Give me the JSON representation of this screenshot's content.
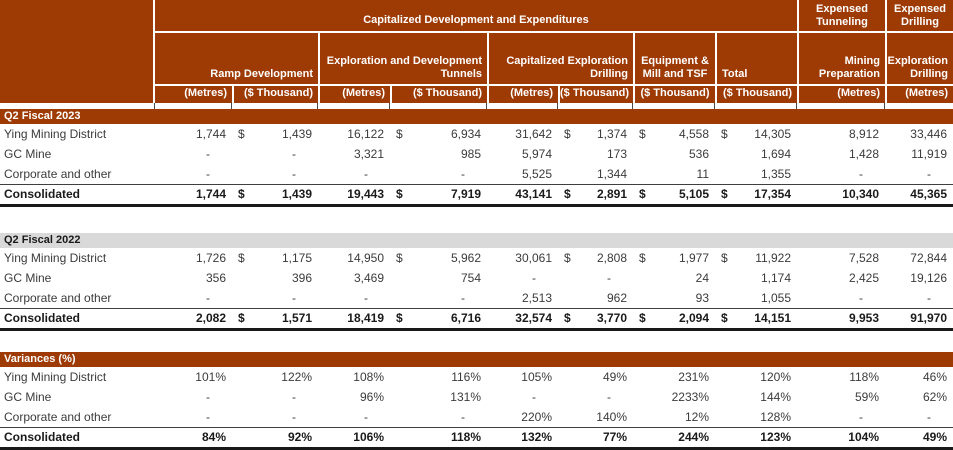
{
  "colors": {
    "accent": "#9E3A04",
    "section_alt_bg": "#D9D9D9",
    "header_text": "#FFFFFF"
  },
  "header": {
    "group": "Capitalized Development and Expenditures",
    "expensed_tunneling": "Expensed Tunneling",
    "expensed_drilling": "Expensed Drilling",
    "columns": [
      "Ramp Development",
      "Exploration and Development Tunnels",
      "Capitalized Exploration Drilling",
      "Equipment & Mill and TSF",
      "Total",
      "Mining Preparation",
      "Exploration Drilling"
    ],
    "units": [
      "(Metres)",
      "($ Thousand)",
      "(Metres)",
      "($ Thousand)",
      "(Metres)",
      "($ Thousand)",
      "($ Thousand)",
      "($ Thousand)",
      "(Metres)",
      "(Metres)"
    ]
  },
  "sections": [
    {
      "title": "Q2 Fiscal 2023",
      "rows": [
        {
          "label": "Ying Mining District",
          "cells": [
            {
              "v": "1,744"
            },
            {
              "s": "$",
              "v": "1,439"
            },
            {
              "v": "16,122"
            },
            {
              "s": "$",
              "v": "6,934"
            },
            {
              "v": "31,642"
            },
            {
              "s": "$",
              "v": "1,374"
            },
            {
              "s": "$",
              "v": "4,558"
            },
            {
              "s": "$",
              "v": "14,305"
            },
            {
              "v": "8,912"
            },
            {
              "v": "33,446"
            }
          ]
        },
        {
          "label": "GC Mine",
          "cells": [
            {
              "v": "-"
            },
            {
              "v": "-"
            },
            {
              "v": "3,321"
            },
            {
              "v": "985"
            },
            {
              "v": "5,974"
            },
            {
              "v": "173"
            },
            {
              "v": "536"
            },
            {
              "v": "1,694"
            },
            {
              "v": "1,428"
            },
            {
              "v": "11,919"
            }
          ]
        },
        {
          "label": "Corporate and other",
          "cells": [
            {
              "v": "-"
            },
            {
              "v": "-"
            },
            {
              "v": "-"
            },
            {
              "v": "-"
            },
            {
              "v": "5,525"
            },
            {
              "v": "1,344"
            },
            {
              "v": "11"
            },
            {
              "v": "1,355"
            },
            {
              "v": "-"
            },
            {
              "v": "-"
            }
          ]
        },
        {
          "label": "Consolidated",
          "cells": [
            {
              "v": "1,744"
            },
            {
              "s": "$",
              "v": "1,439"
            },
            {
              "v": "19,443"
            },
            {
              "s": "$",
              "v": "7,919"
            },
            {
              "v": "43,141"
            },
            {
              "s": "$",
              "v": "2,891"
            },
            {
              "s": "$",
              "v": "5,105"
            },
            {
              "s": "$",
              "v": "17,354"
            },
            {
              "v": "10,340"
            },
            {
              "v": "45,365"
            }
          ]
        }
      ]
    },
    {
      "title": "Q2 Fiscal 2022",
      "rows": [
        {
          "label": "Ying Mining District",
          "cells": [
            {
              "v": "1,726"
            },
            {
              "s": "$",
              "v": "1,175"
            },
            {
              "v": "14,950"
            },
            {
              "s": "$",
              "v": "5,962"
            },
            {
              "v": "30,061"
            },
            {
              "s": "$",
              "v": "2,808"
            },
            {
              "s": "$",
              "v": "1,977"
            },
            {
              "s": "$",
              "v": "11,922"
            },
            {
              "v": "7,528"
            },
            {
              "v": "72,844"
            }
          ]
        },
        {
          "label": "GC Mine",
          "cells": [
            {
              "v": "356"
            },
            {
              "v": "396"
            },
            {
              "v": "3,469"
            },
            {
              "v": "754"
            },
            {
              "v": "-"
            },
            {
              "v": "-"
            },
            {
              "v": "24"
            },
            {
              "v": "1,174"
            },
            {
              "v": "2,425"
            },
            {
              "v": "19,126"
            }
          ]
        },
        {
          "label": "Corporate and other",
          "cells": [
            {
              "v": "-"
            },
            {
              "v": "-"
            },
            {
              "v": "-"
            },
            {
              "v": "-"
            },
            {
              "v": "2,513"
            },
            {
              "v": "962"
            },
            {
              "v": "93"
            },
            {
              "v": "1,055"
            },
            {
              "v": "-"
            },
            {
              "v": "-"
            }
          ]
        },
        {
          "label": "Consolidated",
          "cells": [
            {
              "v": "2,082"
            },
            {
              "s": "$",
              "v": "1,571"
            },
            {
              "v": "18,419"
            },
            {
              "s": "$",
              "v": "6,716"
            },
            {
              "v": "32,574"
            },
            {
              "s": "$",
              "v": "3,770"
            },
            {
              "s": "$",
              "v": "2,094"
            },
            {
              "s": "$",
              "v": "14,151"
            },
            {
              "v": "9,953"
            },
            {
              "v": "91,970"
            }
          ]
        }
      ]
    },
    {
      "title": "Variances (%)",
      "rows": [
        {
          "label": "Ying Mining District",
          "cells": [
            {
              "v": "101%"
            },
            {
              "v": "122%"
            },
            {
              "v": "108%"
            },
            {
              "v": "116%"
            },
            {
              "v": "105%"
            },
            {
              "v": "49%"
            },
            {
              "v": "231%"
            },
            {
              "v": "120%"
            },
            {
              "v": "118%"
            },
            {
              "v": "46%"
            }
          ]
        },
        {
          "label": "GC Mine",
          "cells": [
            {
              "v": "-"
            },
            {
              "v": "-"
            },
            {
              "v": "96%"
            },
            {
              "v": "131%"
            },
            {
              "v": "-"
            },
            {
              "v": "-"
            },
            {
              "v": "2233%"
            },
            {
              "v": "144%"
            },
            {
              "v": "59%"
            },
            {
              "v": "62%"
            }
          ]
        },
        {
          "label": "Corporate and other",
          "cells": [
            {
              "v": "-"
            },
            {
              "v": "-"
            },
            {
              "v": "-"
            },
            {
              "v": "-"
            },
            {
              "v": "220%"
            },
            {
              "v": "140%"
            },
            {
              "v": "12%"
            },
            {
              "v": "128%"
            },
            {
              "v": "-"
            },
            {
              "v": "-"
            }
          ]
        },
        {
          "label": "Consolidated",
          "cells": [
            {
              "v": "84%"
            },
            {
              "v": "92%"
            },
            {
              "v": "106%"
            },
            {
              "v": "118%"
            },
            {
              "v": "132%"
            },
            {
              "v": "77%"
            },
            {
              "v": "244%"
            },
            {
              "v": "123%"
            },
            {
              "v": "104%"
            },
            {
              "v": "49%"
            }
          ]
        }
      ]
    }
  ]
}
